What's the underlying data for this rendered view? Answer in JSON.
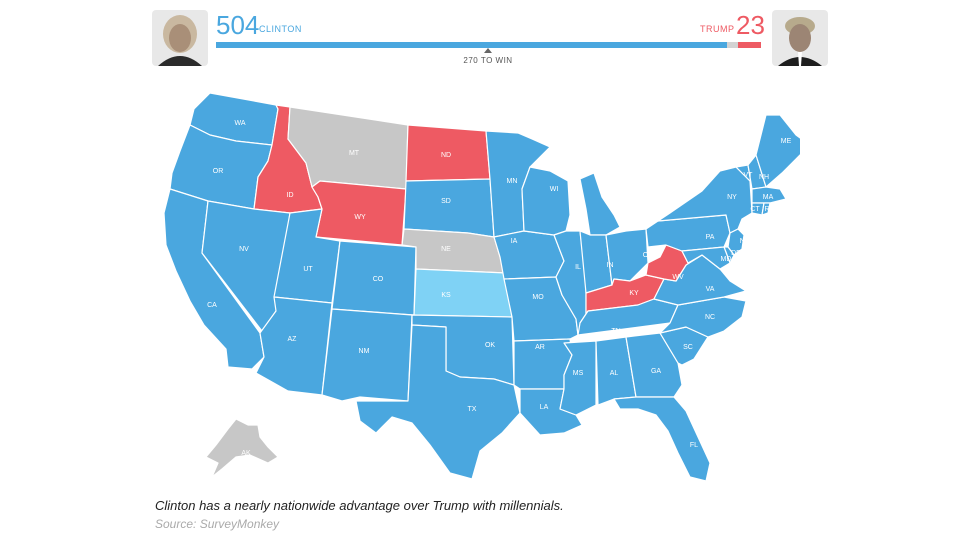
{
  "header": {
    "clinton": {
      "votes": "504",
      "name": "CLINTON",
      "avatar": "clinton-portrait-icon"
    },
    "trump": {
      "votes": "23",
      "name": "TRUMP",
      "avatar": "trump-portrait-icon"
    },
    "win_label": "270 TO WIN",
    "bar": {
      "total": 538,
      "clinton": 504,
      "undecided": 11,
      "trump": 23
    }
  },
  "colors": {
    "clinton": "#4aa7df",
    "lean_clinton": "#7fd2f5",
    "trump": "#ee5a63",
    "undecided": "#c7c7c7",
    "bar_undecided": "#d3d3d3"
  },
  "states": [
    {
      "abbr": "WA",
      "result": "clinton"
    },
    {
      "abbr": "OR",
      "result": "clinton"
    },
    {
      "abbr": "CA",
      "result": "clinton"
    },
    {
      "abbr": "ID",
      "result": "trump"
    },
    {
      "abbr": "NV",
      "result": "clinton"
    },
    {
      "abbr": "MT",
      "result": "undecided"
    },
    {
      "abbr": "WY",
      "result": "trump"
    },
    {
      "abbr": "UT",
      "result": "clinton"
    },
    {
      "abbr": "AZ",
      "result": "clinton"
    },
    {
      "abbr": "CO",
      "result": "clinton"
    },
    {
      "abbr": "NM",
      "result": "clinton"
    },
    {
      "abbr": "ND",
      "result": "trump"
    },
    {
      "abbr": "SD",
      "result": "clinton"
    },
    {
      "abbr": "NE",
      "result": "undecided"
    },
    {
      "abbr": "KS",
      "result": "lean_clinton"
    },
    {
      "abbr": "OK",
      "result": "clinton"
    },
    {
      "abbr": "TX",
      "result": "clinton"
    },
    {
      "abbr": "MN",
      "result": "clinton"
    },
    {
      "abbr": "IA",
      "result": "clinton"
    },
    {
      "abbr": "MO",
      "result": "clinton"
    },
    {
      "abbr": "AR",
      "result": "clinton"
    },
    {
      "abbr": "LA",
      "result": "clinton"
    },
    {
      "abbr": "WI",
      "result": "clinton"
    },
    {
      "abbr": "IL",
      "result": "clinton"
    },
    {
      "abbr": "MI",
      "result": "clinton"
    },
    {
      "abbr": "IN",
      "result": "clinton"
    },
    {
      "abbr": "OH",
      "result": "clinton"
    },
    {
      "abbr": "KY",
      "result": "trump"
    },
    {
      "abbr": "TN",
      "result": "clinton"
    },
    {
      "abbr": "MS",
      "result": "clinton"
    },
    {
      "abbr": "AL",
      "result": "clinton"
    },
    {
      "abbr": "GA",
      "result": "clinton"
    },
    {
      "abbr": "FL",
      "result": "clinton"
    },
    {
      "abbr": "SC",
      "result": "clinton"
    },
    {
      "abbr": "NC",
      "result": "clinton"
    },
    {
      "abbr": "VA",
      "result": "clinton"
    },
    {
      "abbr": "WV",
      "result": "trump"
    },
    {
      "abbr": "PA",
      "result": "clinton"
    },
    {
      "abbr": "NY",
      "result": "clinton"
    },
    {
      "abbr": "VT",
      "result": "clinton"
    },
    {
      "abbr": "NH",
      "result": "clinton"
    },
    {
      "abbr": "ME",
      "result": "clinton"
    },
    {
      "abbr": "MA",
      "result": "clinton"
    },
    {
      "abbr": "CT",
      "result": "clinton"
    },
    {
      "abbr": "RI",
      "result": "clinton"
    },
    {
      "abbr": "NJ",
      "result": "clinton"
    },
    {
      "abbr": "DE",
      "result": "clinton"
    },
    {
      "abbr": "MD",
      "result": "clinton"
    },
    {
      "abbr": "AK",
      "result": "undecided"
    }
  ],
  "caption": "Clinton has a nearly nationwide advantage over Trump with millennials.",
  "source": "Source: SurveyMonkey"
}
